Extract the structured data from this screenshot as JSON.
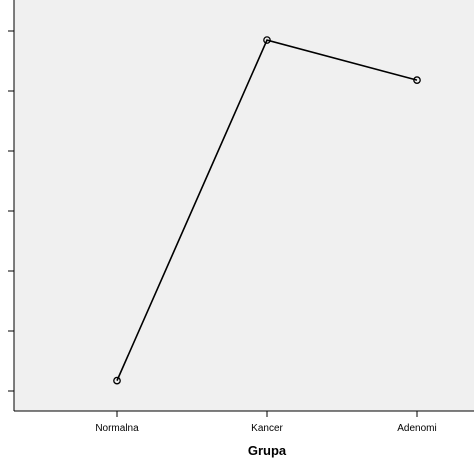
{
  "chart_data": {
    "type": "line",
    "xlabel": "Grupa",
    "ylabel": "",
    "categories": [
      "Normalna",
      "Kancer",
      "Adenomi"
    ],
    "series": [
      {
        "values": [
          0.47,
          5.74,
          5.12
        ]
      }
    ],
    "y_tick_labels": [
      "",
      "",
      "",
      "",
      "",
      "",
      ""
    ],
    "ylim": [
      0,
      6.36
    ],
    "grid": false,
    "marker": "open-circle",
    "colors": {
      "background": "#f0f0f0",
      "line": "#000000",
      "axis": "#000000"
    }
  }
}
